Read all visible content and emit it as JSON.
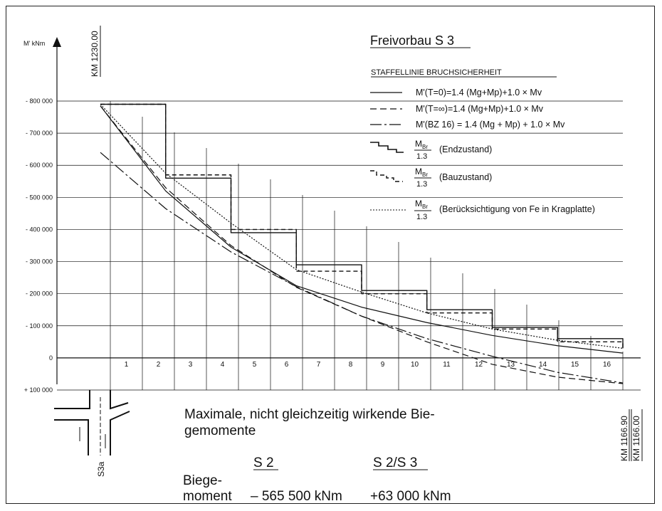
{
  "chart_data": {
    "type": "line",
    "title": "Freivorbau S 3",
    "subtitle": "STAFFELLINIE BRUCHSICHERHEIT",
    "ylabel": "M' kNm",
    "xlabel": "",
    "ylim": [
      100000,
      -800000
    ],
    "y_ticks": [
      -800000,
      -700000,
      -600000,
      -500000,
      -400000,
      -300000,
      -200000,
      -100000,
      0,
      100000
    ],
    "y_tick_labels": [
      "- 800 000",
      "- 700 000",
      "- 600 000",
      "- 500 000",
      "- 400 000",
      "- 300 000",
      "- 200 000",
      "- 100 000",
      "0",
      "+ 100 000"
    ],
    "x_ticks": [
      "1",
      "2",
      "3",
      "4",
      "5",
      "6",
      "7",
      "8",
      "9",
      "10",
      "11",
      "12",
      "13",
      "14",
      "15",
      "16"
    ],
    "grid": true,
    "legend_position": "top-right",
    "x": [
      0,
      2,
      4,
      6,
      8,
      10,
      12,
      14,
      16
    ],
    "series": [
      {
        "name": "M'(T=0)=1.4 (Mg+Mp)+1.0 × Mv",
        "style": "solid",
        "values": [
          -785000,
          -520000,
          -345000,
          -225000,
          -158000,
          -110000,
          -70000,
          -38000,
          -15000
        ]
      },
      {
        "name": "M'(T=∞)=1.4 (Mg+Mp)+1.0 × Mv",
        "style": "dashed",
        "values": [
          -785000,
          -530000,
          -350000,
          -220000,
          -130000,
          -50000,
          20000,
          60000,
          80000
        ]
      },
      {
        "name": "M'(BZ 16) = 1.4 (Mg + Mp) + 1.0 × Mv",
        "style": "dashdot",
        "values": [
          -640000,
          -465000,
          -330000,
          -222000,
          -130000,
          -60000,
          -5000,
          45000,
          78000
        ]
      },
      {
        "name": "(Endzustand)",
        "style": "step-solid",
        "values": [
          -790000,
          -560000,
          -390000,
          -290000,
          -210000,
          -150000,
          -95000,
          -60000,
          -30000
        ]
      },
      {
        "name": "(Bauzustand)",
        "style": "step-dashed",
        "values": [
          -790000,
          -570000,
          -400000,
          -270000,
          -200000,
          -140000,
          -90000,
          -50000,
          -30000
        ]
      },
      {
        "name": "(Berücksichtigung von Fe in Kragplatte)",
        "style": "dotted",
        "values": [
          -790000,
          -575000,
          -420000,
          -275000,
          -205000,
          -140000,
          -90000,
          -55000,
          -30000
        ]
      }
    ],
    "legend_fraction": {
      "num": "M",
      "num_sub": "Br",
      "den": "1.3"
    },
    "annotations": {
      "km_top": "KM 1230.00",
      "km_right_1": "KM 1166.90",
      "km_right_2": "KM 1166.00",
      "section_label": "S3a"
    }
  },
  "caption": {
    "line1": "Maximale, nicht gleichzeitig wirkende Bie-",
    "line2": "gemomente",
    "col1_header": "S 2",
    "col2_header": "S 2/S 3",
    "row_label_1": "Biege-",
    "row_label_2": "moment",
    "col1_value": "– 565 500 kNm",
    "col2_value": "+63 000 kNm"
  }
}
